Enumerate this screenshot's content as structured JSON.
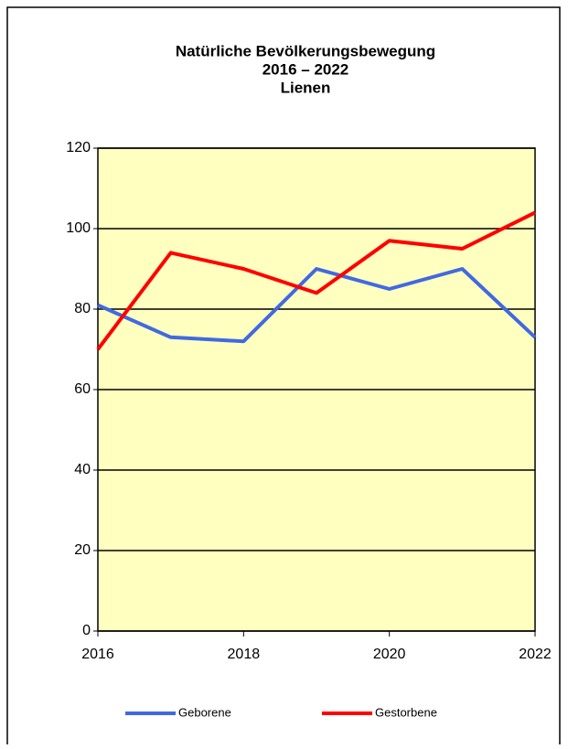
{
  "chart_data": {
    "type": "line",
    "title": [
      "Natürliche Bevölkerungsbewegung",
      "2016 – 2022",
      "Lienen"
    ],
    "x": [
      2016,
      2017,
      2018,
      2019,
      2020,
      2021,
      2022
    ],
    "series": [
      {
        "name": "Geborene",
        "color": "#4169e1",
        "values": [
          81,
          73,
          72,
          90,
          85,
          90,
          73
        ]
      },
      {
        "name": "Gestorbene",
        "color": "#ff0000",
        "values": [
          70,
          94,
          90,
          84,
          97,
          95,
          104
        ]
      }
    ],
    "xlim": [
      2016,
      2022
    ],
    "xticks": [
      2016,
      2018,
      2020,
      2022
    ],
    "ylim": [
      0,
      120
    ],
    "yticks": [
      0,
      20,
      40,
      60,
      80,
      100,
      120
    ],
    "grid": true,
    "background": "#ffffc0",
    "legend": "bottom"
  }
}
